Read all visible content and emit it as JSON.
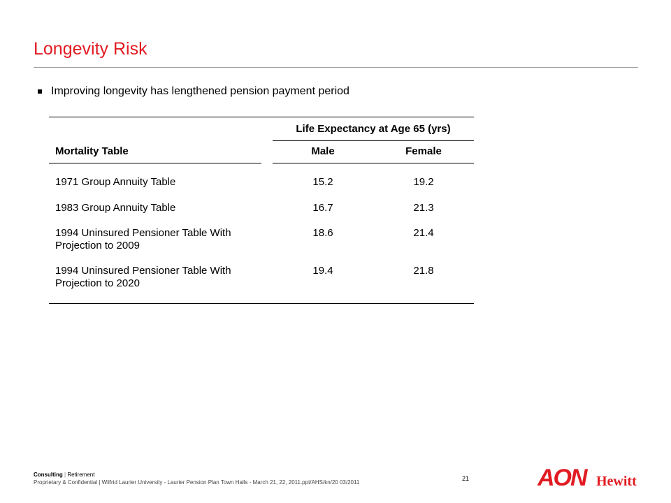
{
  "slide": {
    "title": "Longevity Risk",
    "bullet": "Improving longevity has lengthened pension payment period"
  },
  "table": {
    "group_header": "Life Expectancy at Age 65 (yrs)",
    "col_mortality": "Mortality Table",
    "col_male": "Male",
    "col_female": "Female",
    "rows": [
      {
        "line1": "1971 Group Annuity Table",
        "line2": "",
        "male": "15.2",
        "female": "19.2"
      },
      {
        "line1": "1983 Group Annuity Table",
        "line2": "",
        "male": "16.7",
        "female": "21.3"
      },
      {
        "line1": "1994 Uninsured Pensioner Table With",
        "line2": "Projection to 2009",
        "male": "18.6",
        "female": "21.4"
      },
      {
        "line1": "1994 Uninsured Pensioner Table With",
        "line2": "Projection to 2020",
        "male": "19.4",
        "female": "21.8"
      }
    ]
  },
  "footer": {
    "line1_a": "Consulting",
    "line1_sep": "|",
    "line1_b": "Retirement",
    "line2": "Proprietary & Confidential  |  Wilfrid Laurier University - Laurier Pension Plan Town Halls - March 21, 22, 2011.ppt/AHS/kn/20 03/2011",
    "page_number": "21"
  },
  "logo": {
    "brand_a": "AON",
    "brand_b": "Hewitt",
    "brand_color": "#e11b22"
  }
}
